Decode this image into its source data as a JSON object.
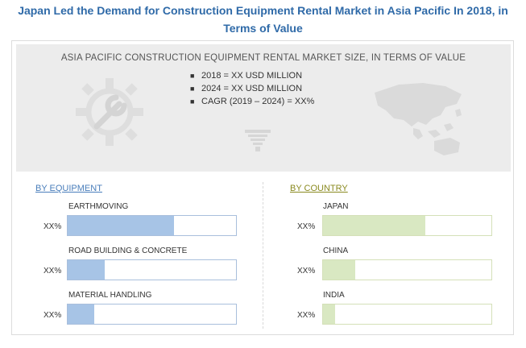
{
  "title_line1": "Japan Led the Demand for Construction Equipment Rental Market in  Asia Pacific In 2018, in",
  "title_line2": "Terms of Value",
  "banner": {
    "title": "ASIA PACIFIC CONSTRUCTION EQUIPMENT RENTAL MARKET SIZE, IN TERMS OF VALUE",
    "bullets": [
      "2018 = XX USD MILLION",
      "2024 = XX USD MILLION",
      "CAGR (2019 – 2024) = XX%"
    ],
    "icons": [
      "gear-wrench-icon",
      "crane-icon",
      "asia-pacific-map-icon"
    ]
  },
  "chart_data": [
    {
      "type": "bar",
      "orientation": "horizontal",
      "section_label": "BY EQUIPMENT",
      "categories": [
        "EARTHMOVING",
        "ROAD BUILDING  & CONCRETE",
        "MATERIAL HANDLING"
      ],
      "value_labels": [
        "XX%",
        "XX%",
        "XX%"
      ],
      "relative_share": [
        0.63,
        0.22,
        0.16
      ],
      "color": "#a7c4e6"
    },
    {
      "type": "bar",
      "orientation": "horizontal",
      "section_label": "BY COUNTRY",
      "categories": [
        "JAPAN",
        "CHINA",
        "INDIA"
      ],
      "value_labels": [
        "XX%",
        "XX%",
        "XX%"
      ],
      "relative_share": [
        0.61,
        0.19,
        0.07
      ],
      "color": "#d9e8c2"
    }
  ]
}
